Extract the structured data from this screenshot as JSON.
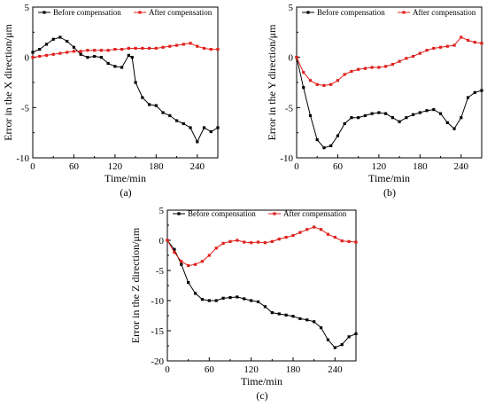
{
  "chart_data": [
    {
      "type": "line",
      "panel_label": "(a)",
      "xlabel": "Time/min",
      "ylabel": "Error in the X direction/μm",
      "xlim": [
        0,
        270
      ],
      "ylim": [
        -10,
        5
      ],
      "xticks": [
        0,
        60,
        120,
        180,
        240
      ],
      "yticks": [
        5,
        0,
        -5,
        -10
      ],
      "legend_position": "top",
      "series": [
        {
          "name": "Before compensation",
          "color": "#000000",
          "x": [
            0,
            10,
            20,
            30,
            40,
            50,
            60,
            70,
            80,
            90,
            100,
            110,
            120,
            130,
            140,
            145,
            150,
            160,
            170,
            180,
            190,
            200,
            210,
            220,
            230,
            240,
            250,
            260,
            270
          ],
          "y": [
            0.5,
            0.8,
            1.3,
            1.8,
            2.0,
            1.6,
            1.0,
            0.3,
            0.0,
            0.1,
            0.0,
            -0.6,
            -0.9,
            -1.0,
            0.2,
            0.0,
            -2.5,
            -4.0,
            -4.7,
            -4.8,
            -5.5,
            -5.8,
            -6.3,
            -6.6,
            -7.0,
            -8.4,
            -7.0,
            -7.4,
            -7.0
          ]
        },
        {
          "name": "After compensation",
          "color": "#e0201c",
          "x": [
            0,
            10,
            20,
            30,
            40,
            50,
            60,
            70,
            80,
            90,
            100,
            110,
            120,
            130,
            140,
            150,
            160,
            170,
            180,
            190,
            200,
            210,
            220,
            230,
            240,
            250,
            260,
            270
          ],
          "y": [
            0.0,
            0.1,
            0.2,
            0.3,
            0.4,
            0.5,
            0.6,
            0.6,
            0.7,
            0.7,
            0.7,
            0.7,
            0.8,
            0.8,
            0.9,
            0.9,
            0.9,
            0.9,
            0.9,
            1.0,
            1.1,
            1.2,
            1.3,
            1.4,
            1.1,
            0.9,
            0.8,
            0.8
          ]
        }
      ]
    },
    {
      "type": "line",
      "panel_label": "(b)",
      "xlabel": "Time/min",
      "ylabel": "Error in the Y direction/μm",
      "xlim": [
        0,
        270
      ],
      "ylim": [
        -10,
        5
      ],
      "xticks": [
        0,
        60,
        120,
        180,
        240
      ],
      "yticks": [
        5,
        0,
        -5,
        -10
      ],
      "legend_position": "top",
      "series": [
        {
          "name": "Before compensation",
          "color": "#000000",
          "x": [
            0,
            10,
            20,
            30,
            40,
            50,
            60,
            70,
            80,
            90,
            100,
            110,
            120,
            130,
            140,
            150,
            160,
            170,
            180,
            190,
            200,
            210,
            220,
            230,
            240,
            250,
            260,
            270
          ],
          "y": [
            0.0,
            -3.0,
            -5.8,
            -8.2,
            -9.0,
            -8.8,
            -7.8,
            -6.6,
            -6.0,
            -6.0,
            -5.8,
            -5.6,
            -5.5,
            -5.6,
            -6.0,
            -6.4,
            -6.0,
            -5.7,
            -5.5,
            -5.3,
            -5.2,
            -5.6,
            -6.5,
            -7.1,
            -6.0,
            -4.0,
            -3.5,
            -3.3
          ]
        },
        {
          "name": "After compensation",
          "color": "#e0201c",
          "x": [
            0,
            10,
            20,
            30,
            40,
            50,
            60,
            70,
            80,
            90,
            100,
            110,
            120,
            130,
            140,
            150,
            160,
            170,
            180,
            190,
            200,
            210,
            220,
            230,
            240,
            250,
            260,
            270
          ],
          "y": [
            0.0,
            -1.5,
            -2.3,
            -2.7,
            -2.8,
            -2.7,
            -2.3,
            -1.7,
            -1.4,
            -1.2,
            -1.1,
            -1.0,
            -1.0,
            -0.9,
            -0.7,
            -0.4,
            -0.1,
            0.1,
            0.4,
            0.7,
            0.9,
            1.0,
            1.1,
            1.2,
            2.0,
            1.7,
            1.5,
            1.4
          ]
        }
      ]
    },
    {
      "type": "line",
      "panel_label": "(c)",
      "xlabel": "Time/min",
      "ylabel": "Error in the Z direction/μm",
      "xlim": [
        0,
        270
      ],
      "ylim": [
        -20,
        5
      ],
      "xticks": [
        0,
        60,
        120,
        180,
        240
      ],
      "yticks": [
        5,
        0,
        -5,
        -10,
        -15,
        -20
      ],
      "legend_position": "top",
      "series": [
        {
          "name": "Before compensation",
          "color": "#000000",
          "x": [
            0,
            10,
            20,
            30,
            40,
            50,
            60,
            70,
            80,
            90,
            100,
            110,
            120,
            130,
            140,
            150,
            160,
            170,
            180,
            190,
            200,
            210,
            220,
            230,
            240,
            250,
            260,
            270
          ],
          "y": [
            0.0,
            -1.5,
            -4.0,
            -7.0,
            -8.8,
            -9.8,
            -10.0,
            -10.0,
            -9.6,
            -9.5,
            -9.4,
            -9.7,
            -10.0,
            -10.2,
            -11.0,
            -12.0,
            -12.2,
            -12.4,
            -12.6,
            -13.0,
            -13.2,
            -13.5,
            -14.5,
            -16.5,
            -17.8,
            -17.3,
            -16.0,
            -15.5
          ]
        },
        {
          "name": "After compensation",
          "color": "#e0201c",
          "x": [
            0,
            10,
            20,
            30,
            40,
            50,
            60,
            70,
            80,
            90,
            100,
            110,
            120,
            130,
            140,
            150,
            160,
            170,
            180,
            190,
            200,
            210,
            220,
            230,
            240,
            250,
            260,
            270
          ],
          "y": [
            0.0,
            -2.0,
            -3.5,
            -4.2,
            -4.0,
            -3.5,
            -2.5,
            -1.3,
            -0.5,
            -0.2,
            0.0,
            -0.3,
            -0.4,
            -0.3,
            -0.4,
            -0.2,
            0.2,
            0.5,
            0.8,
            1.3,
            1.8,
            2.2,
            1.8,
            1.0,
            0.5,
            -0.1,
            -0.2,
            -0.3
          ]
        }
      ]
    }
  ]
}
